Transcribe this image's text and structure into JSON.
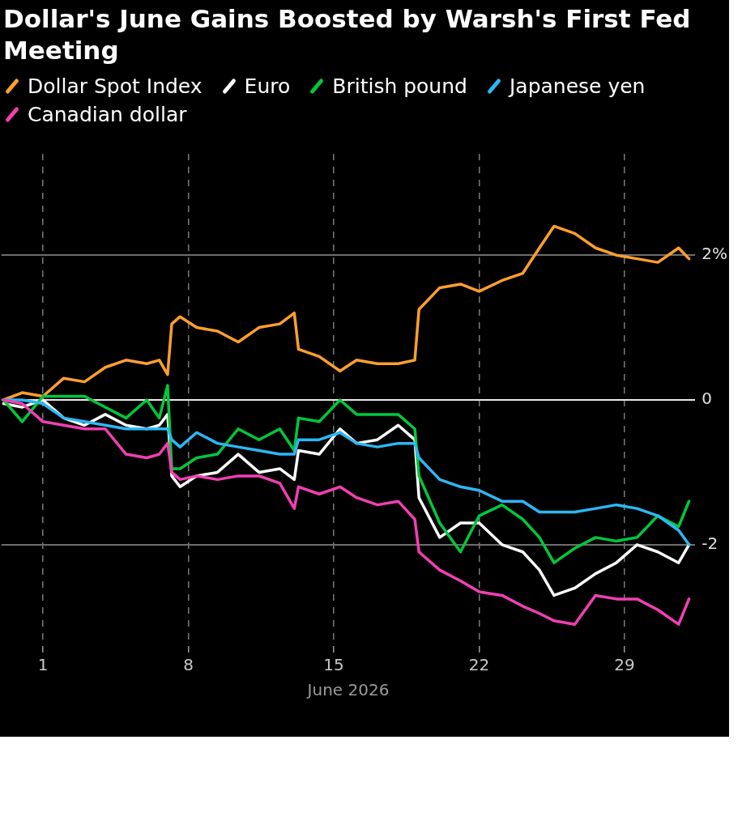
{
  "chart_data": {
    "type": "line",
    "title": "Dollar's June Gains Boosted by Warsh's First Fed Meeting",
    "xlabel": "June 2026",
    "x": [
      -0.9,
      0,
      1,
      2,
      3,
      4,
      5,
      6,
      6.6,
      7,
      7.2,
      7.6,
      8.4,
      9.4,
      10.4,
      11.4,
      12.4,
      13.1,
      13.3,
      14.3,
      15.3,
      16.1,
      17.1,
      18.1,
      18.9,
      19.1,
      20.1,
      21.1,
      22,
      23.1,
      24.1,
      24.9,
      25.6,
      26.6,
      27.6,
      28.6,
      29.6,
      30.6,
      31.6,
      32.1
    ],
    "series": [
      {
        "name": "Dollar Spot Index",
        "color": "#ff9f2e",
        "values": [
          0,
          0.1,
          0.05,
          0.3,
          0.25,
          0.45,
          0.55,
          0.5,
          0.55,
          0.35,
          1.05,
          1.15,
          1.0,
          0.95,
          0.8,
          1.0,
          1.05,
          1.2,
          0.7,
          0.6,
          0.4,
          0.55,
          0.5,
          0.5,
          0.55,
          1.25,
          1.55,
          1.6,
          1.5,
          1.65,
          1.75,
          2.1,
          2.4,
          2.3,
          2.1,
          2.0,
          1.95,
          1.9,
          2.1,
          1.95
        ]
      },
      {
        "name": "Euro",
        "color": "#ffffff",
        "values": [
          -0.05,
          -0.1,
          0,
          -0.25,
          -0.35,
          -0.2,
          -0.35,
          -0.4,
          -0.35,
          -0.2,
          -1.05,
          -1.2,
          -1.05,
          -1.0,
          -0.75,
          -1.0,
          -0.95,
          -1.1,
          -0.7,
          -0.75,
          -0.4,
          -0.6,
          -0.55,
          -0.35,
          -0.55,
          -1.35,
          -1.9,
          -1.7,
          -1.7,
          -2.0,
          -2.1,
          -2.35,
          -2.7,
          -2.6,
          -2.4,
          -2.25,
          -2.0,
          -2.1,
          -2.25,
          -2.0
        ]
      },
      {
        "name": "British pound",
        "color": "#00c83c",
        "values": [
          0,
          -0.3,
          0.05,
          0.05,
          0.05,
          -0.1,
          -0.25,
          0,
          -0.25,
          0.2,
          -0.95,
          -0.95,
          -0.8,
          -0.75,
          -0.4,
          -0.55,
          -0.4,
          -0.7,
          -0.25,
          -0.3,
          0,
          -0.2,
          -0.2,
          -0.2,
          -0.4,
          -1.05,
          -1.7,
          -2.1,
          -1.6,
          -1.45,
          -1.65,
          -1.9,
          -2.25,
          -2.05,
          -1.9,
          -1.95,
          -1.9,
          -1.6,
          -1.75,
          -1.4
        ]
      },
      {
        "name": "Japanese yen",
        "color": "#2bb8f5",
        "values": [
          0,
          0,
          -0.05,
          -0.25,
          -0.3,
          -0.35,
          -0.4,
          -0.4,
          -0.4,
          -0.4,
          -0.55,
          -0.65,
          -0.45,
          -0.6,
          -0.65,
          -0.7,
          -0.75,
          -0.75,
          -0.55,
          -0.55,
          -0.45,
          -0.6,
          -0.65,
          -0.6,
          -0.6,
          -0.8,
          -1.1,
          -1.2,
          -1.25,
          -1.4,
          -1.4,
          -1.55,
          -1.55,
          -1.55,
          -1.5,
          -1.45,
          -1.5,
          -1.6,
          -1.8,
          -2.0
        ]
      },
      {
        "name": "Canadian dollar",
        "color": "#f23fb4",
        "values": [
          0,
          -0.05,
          -0.3,
          -0.35,
          -0.4,
          -0.4,
          -0.75,
          -0.8,
          -0.75,
          -0.6,
          -1.0,
          -1.1,
          -1.05,
          -1.1,
          -1.05,
          -1.05,
          -1.15,
          -1.5,
          -1.2,
          -1.3,
          -1.2,
          -1.35,
          -1.45,
          -1.4,
          -1.65,
          -2.1,
          -2.35,
          -2.5,
          -2.65,
          -2.7,
          -2.85,
          -2.95,
          -3.05,
          -3.1,
          -2.7,
          -2.75,
          -2.75,
          -2.9,
          -3.1,
          -2.75
        ]
      }
    ],
    "xlim": [
      -1,
      32.4
    ],
    "xticks": [
      1,
      8,
      15,
      22,
      29
    ],
    "ylim": [
      -3.4,
      3.4
    ],
    "yticks": [
      {
        "value": -2,
        "label": "-2"
      },
      {
        "value": 0,
        "label": "0"
      },
      {
        "value": 2,
        "label": "2%"
      }
    ],
    "grid": true,
    "legend": "top",
    "marker": "none",
    "line_style": "solid"
  }
}
